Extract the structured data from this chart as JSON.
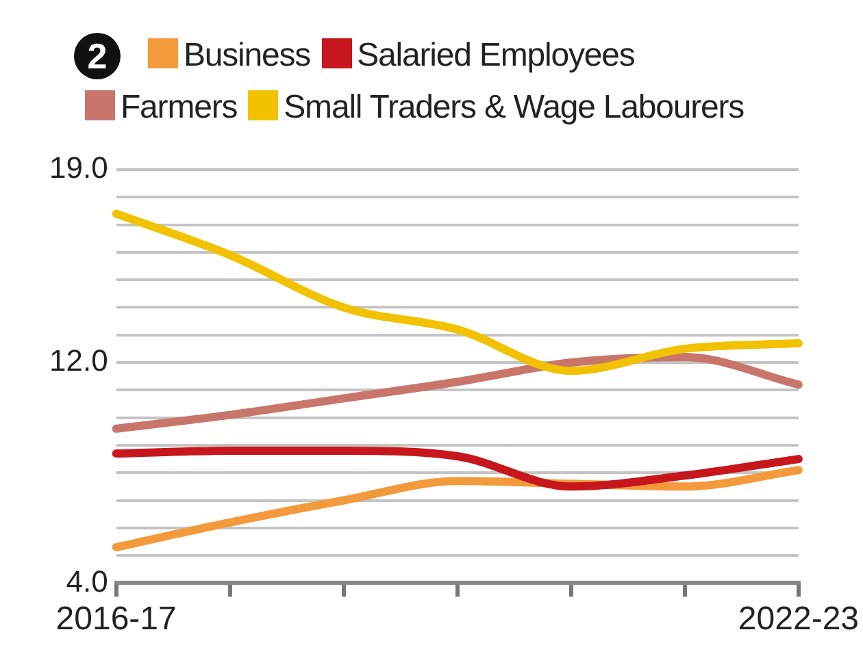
{
  "chart_data": {
    "type": "line",
    "annotations": [
      "2"
    ],
    "categories": [
      "2016-17",
      null,
      null,
      null,
      null,
      null,
      "2022-23"
    ],
    "series": [
      {
        "name": "Business",
        "color": "#f39a3c",
        "values": [
          5.3,
          6.2,
          7.0,
          7.7,
          7.6,
          7.5,
          8.1
        ]
      },
      {
        "name": "Salaried Employees",
        "color": "#c8161d",
        "values": [
          8.7,
          8.8,
          8.8,
          8.6,
          7.5,
          7.9,
          8.5
        ]
      },
      {
        "name": "Farmers",
        "color": "#c8766b",
        "values": [
          9.6,
          10.1,
          10.7,
          11.3,
          12.0,
          12.2,
          11.2
        ]
      },
      {
        "name": "Small Traders & Wage Labourers",
        "color": "#f2c200",
        "values": [
          17.4,
          15.9,
          14.0,
          13.2,
          11.7,
          12.5,
          12.7
        ]
      }
    ],
    "ylim": [
      4,
      19
    ],
    "yticks": [
      {
        "value": 4,
        "label": "4.0"
      },
      {
        "value": 5,
        "label": null
      },
      {
        "value": 6,
        "label": null
      },
      {
        "value": 7,
        "label": null
      },
      {
        "value": 8,
        "label": null
      },
      {
        "value": 9,
        "label": null
      },
      {
        "value": 10,
        "label": null
      },
      {
        "value": 11,
        "label": null
      },
      {
        "value": 12,
        "label": "12.0"
      },
      {
        "value": 13,
        "label": null
      },
      {
        "value": 14,
        "label": null
      },
      {
        "value": 15,
        "label": null
      },
      {
        "value": 16,
        "label": null
      },
      {
        "value": 17,
        "label": null
      },
      {
        "value": 18,
        "label": null
      },
      {
        "value": 19,
        "label": "19.0"
      }
    ],
    "grid": "y",
    "legend": "top",
    "marker": "none",
    "line_style": "solid"
  }
}
